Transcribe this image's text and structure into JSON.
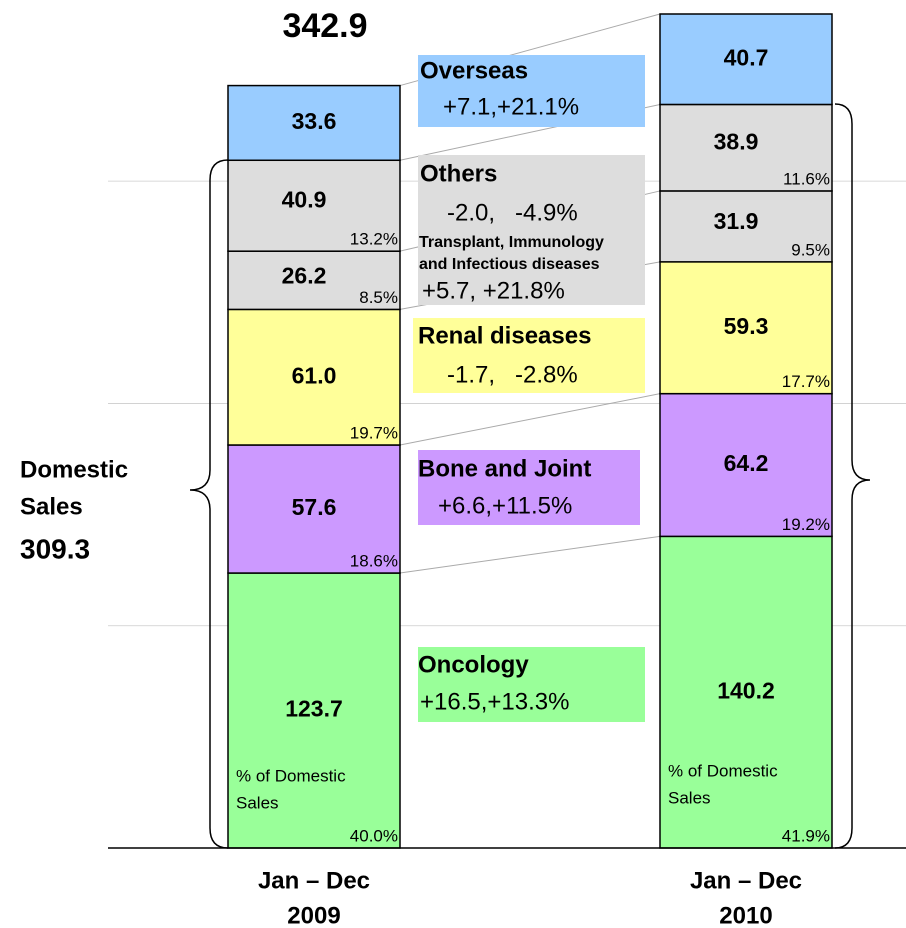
{
  "chart_data": {
    "type": "bar",
    "stacked": true,
    "categories": [
      [
        "Jan – Dec",
        "2009"
      ],
      [
        "Jan – Dec",
        "2010"
      ]
    ],
    "total_label": 342.9,
    "domestic_label": [
      "Domestic",
      "Sales"
    ],
    "domestic_total": 309.3,
    "note": [
      "% of Domestic",
      "Sales"
    ],
    "yticks": [
      100,
      200,
      300
    ],
    "grid": true,
    "series": [
      {
        "name": "Oncology",
        "color": "#99ff99",
        "values": [
          123.7,
          140.2
        ],
        "value_labels": [
          "123.7",
          "140.2"
        ],
        "shares": [
          40.0,
          41.9
        ],
        "share_labels": [
          "40.0%",
          "41.9%"
        ],
        "change": "+16.5,+13.3%"
      },
      {
        "name": "Bone and Joint",
        "color": "#cc99ff",
        "values": [
          57.6,
          64.2
        ],
        "value_labels": [
          "57.6",
          "64.2"
        ],
        "shares": [
          18.6,
          19.2
        ],
        "share_labels": [
          "18.6%",
          "19.2%"
        ],
        "change": "+6.6,+11.5%"
      },
      {
        "name": "Renal diseases",
        "color": "#ffff99",
        "values": [
          61.0,
          59.3
        ],
        "value_labels": [
          "61.0",
          "59.3"
        ],
        "shares": [
          19.7,
          17.7
        ],
        "share_labels": [
          "19.7%",
          "17.7%"
        ],
        "change": "-1.7,   -2.8%"
      },
      {
        "name": [
          "Transplant, Immunology",
          "and Infectious diseases"
        ],
        "color": "#dddddd",
        "values": [
          26.2,
          31.9
        ],
        "value_labels": [
          "26.2",
          "31.9"
        ],
        "shares": [
          8.5,
          9.5
        ],
        "share_labels": [
          "8.5%",
          "9.5%"
        ],
        "change": "+5.7, +21.8%"
      },
      {
        "name": "Others",
        "color": "#dddddd",
        "values": [
          40.9,
          38.9
        ],
        "value_labels": [
          "40.9",
          "38.9"
        ],
        "shares": [
          13.2,
          11.6
        ],
        "share_labels": [
          "13.2%",
          "11.6%"
        ],
        "change": "-2.0,   -4.9%"
      },
      {
        "name": "Overseas",
        "color": "#99ccff",
        "values": [
          33.6,
          40.7
        ],
        "value_labels": [
          "33.6",
          "40.7"
        ],
        "change": "+7.1,+21.1%"
      }
    ]
  }
}
